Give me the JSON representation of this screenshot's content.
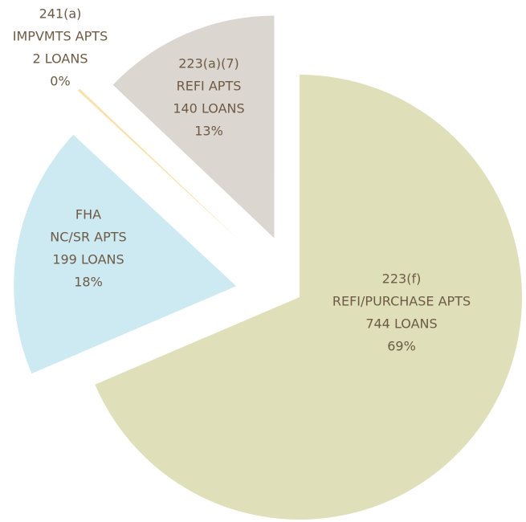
{
  "chart_data": {
    "type": "pie",
    "categories": [
      "223(f)",
      "FHA",
      "241(a)",
      "223(a)(7)"
    ],
    "subtitles": [
      "REFI/PURCHASE APTS",
      "NC/SR APTS",
      "IMPVMTS APTS",
      "REFI APTS"
    ],
    "values": [
      744,
      199,
      2,
      140
    ],
    "value_labels": [
      "744 LOANS",
      "199 LOANS",
      "2 LOANS",
      "140 LOANS"
    ],
    "percents": [
      69,
      18,
      0,
      13
    ],
    "percent_labels": [
      "69%",
      "18%",
      "0%",
      "13%"
    ],
    "colors": [
      "#dfe0b9",
      "#cdeaf3",
      "#f7e2ae",
      "#dcd6d0"
    ]
  }
}
